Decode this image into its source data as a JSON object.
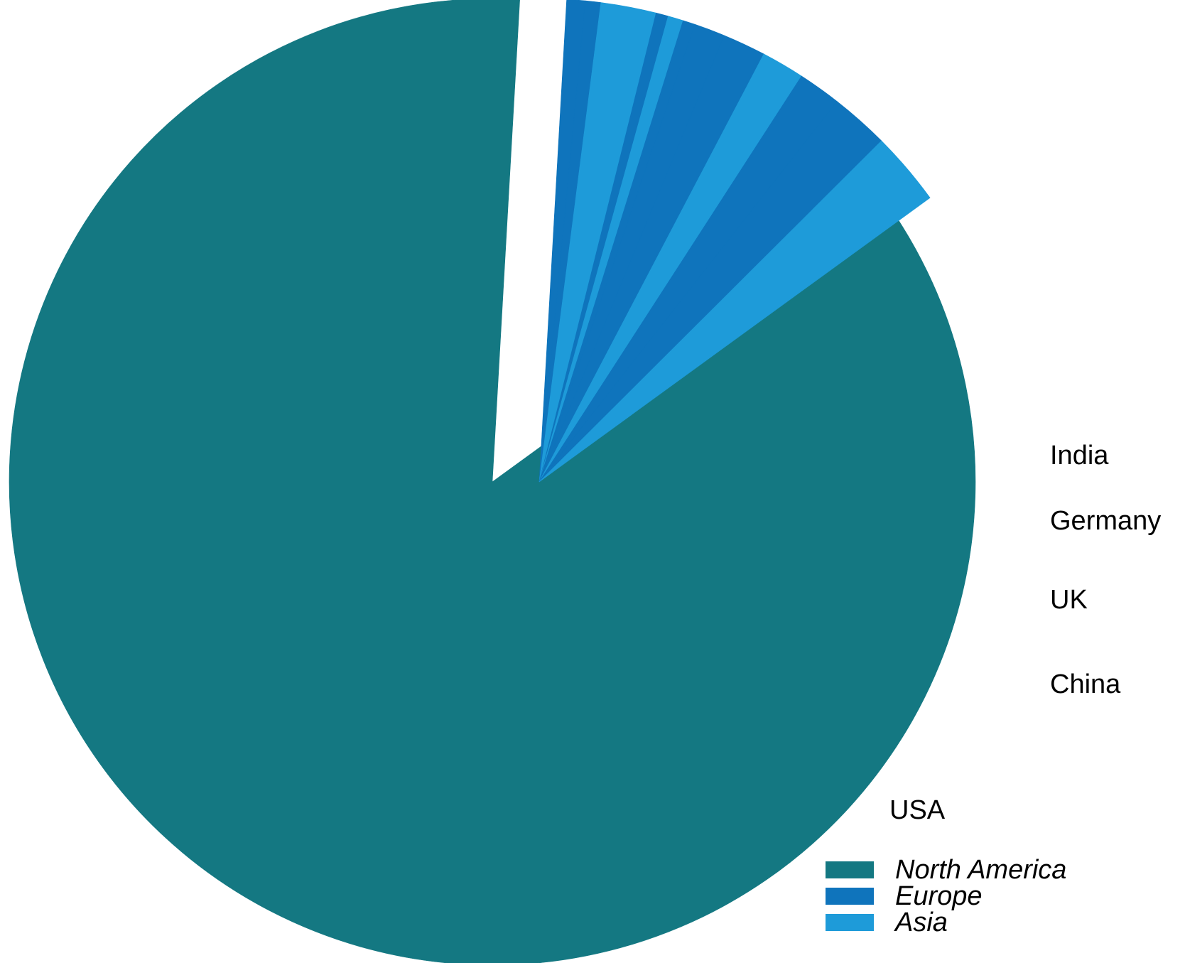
{
  "chart_data": {
    "type": "pie",
    "exploded_group": "others",
    "start_angle_deg": 36,
    "direction": "clockwise",
    "slices": [
      {
        "region": "North America",
        "value": 83.5,
        "label": "USA"
      },
      {
        "region": "Europe",
        "value": 0.6,
        "label": ""
      },
      {
        "region": "Europe",
        "value": 0.5,
        "label": ""
      },
      {
        "region": "Asia",
        "value": 1.8,
        "label": ""
      },
      {
        "region": "Europe",
        "value": 0.4,
        "label": ""
      },
      {
        "region": "Asia",
        "value": 0.5,
        "label": ""
      },
      {
        "region": "Europe",
        "value": 0.4,
        "label": ""
      },
      {
        "region": "Europe",
        "value": 1.0,
        "label": ""
      },
      {
        "region": "Europe",
        "value": 1.4,
        "label": ""
      },
      {
        "region": "Asia",
        "value": 1.4,
        "label": "India"
      },
      {
        "region": "Europe",
        "value": 1.4,
        "label": "Germany"
      },
      {
        "region": "Europe",
        "value": 1.9,
        "label": "UK"
      },
      {
        "region": "Asia",
        "value": 2.4,
        "label": "China"
      }
    ],
    "legend": {
      "position": "bottom-right",
      "entries": [
        {
          "name": "North America",
          "color": "#147882"
        },
        {
          "name": "Europe",
          "color": "#0f74bc"
        },
        {
          "name": "Asia",
          "color": "#1e9bd9"
        }
      ]
    }
  }
}
